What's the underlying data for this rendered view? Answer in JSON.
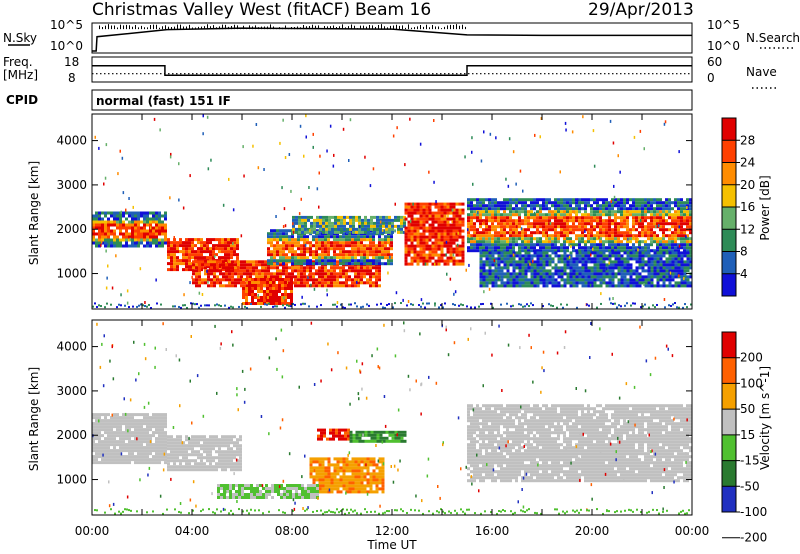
{
  "header": {
    "station": "Christmas Valley West (fitACF)",
    "beam": "Beam 16",
    "date": "29/Apr/2013"
  },
  "colors": {
    "power": [
      "#1010d8",
      "#1f5fb8",
      "#2e8b57",
      "#66b06a",
      "#f5c000",
      "#ff8c00",
      "#ff4000",
      "#e00000"
    ],
    "velocity": [
      "#2030c0",
      "#2a7a30",
      "#50c030",
      "#c0c0c0",
      "#f5a000",
      "#ff6000",
      "#e00000"
    ]
  },
  "chart_data": [
    {
      "type": "line",
      "panel": "noise",
      "left_label": "N.Sky",
      "right_label": "N.Search",
      "left_ticks": [
        "10^5",
        "10^0"
      ],
      "right_ticks": [
        "10^5",
        "10^0"
      ],
      "series": [
        {
          "x": [
            "00:00",
            "00:10",
            "00:12",
            "03:00",
            "06:00",
            "09:00",
            "12:00",
            "15:00",
            "18:00",
            "22:00",
            "24:00"
          ],
          "y_level": [
            0.0,
            0.0,
            0.55,
            0.82,
            0.88,
            0.86,
            0.84,
            0.62,
            0.6,
            0.6,
            0.6
          ]
        }
      ]
    },
    {
      "type": "line",
      "panel": "frequency",
      "left_label_lines": [
        "Freq.",
        "[MHz]"
      ],
      "right_label": "Nave",
      "left_ticks": [
        "18",
        "8"
      ],
      "right_ticks": [
        "60",
        "0"
      ],
      "series": [
        {
          "name": "Freq",
          "x": [
            "00:00",
            "02:55",
            "02:55",
            "15:00",
            "15:00",
            "24:00"
          ],
          "y": [
            14.5,
            14.5,
            10.7,
            10.7,
            14.5,
            14.5
          ]
        },
        {
          "name": "Nave",
          "x": [
            "00:00",
            "24:00"
          ],
          "y": [
            20,
            20
          ]
        }
      ]
    },
    {
      "type": "table",
      "panel": "cpid",
      "label": "CPID",
      "entries": [
        {
          "x": "00:00",
          "text": "normal (fast) 151 IF"
        }
      ]
    },
    {
      "type": "heatmap",
      "panel": "power",
      "ylabel": "Slant Range [km]",
      "yticks": [
        1000,
        2000,
        3000,
        4000
      ],
      "ylim": [
        200,
        4600
      ],
      "xlim": [
        "00:00",
        "24:00"
      ],
      "colorbar": {
        "label": "Power [dB]",
        "ticks": [
          4,
          8,
          12,
          16,
          20,
          24,
          28
        ]
      },
      "bands": [
        {
          "t0": 0.0,
          "t1": 2.9,
          "r0": 1600,
          "r1": 2400,
          "level": "mixed"
        },
        {
          "t0": 3.0,
          "t1": 5.8,
          "r0": 1100,
          "r1": 1800,
          "level": "strong"
        },
        {
          "t0": 4.0,
          "t1": 11.5,
          "r0": 700,
          "r1": 1300,
          "level": "strong"
        },
        {
          "t0": 6.0,
          "t1": 8.0,
          "r0": 300,
          "r1": 900,
          "level": "strong"
        },
        {
          "t0": 7.0,
          "t1": 12.0,
          "r0": 1200,
          "r1": 2000,
          "level": "mixed"
        },
        {
          "t0": 8.0,
          "t1": 12.5,
          "r0": 1900,
          "r1": 2300,
          "level": "medium"
        },
        {
          "t0": 12.5,
          "t1": 14.8,
          "r0": 1200,
          "r1": 2600,
          "level": "strong"
        },
        {
          "t0": 15.0,
          "t1": 24.0,
          "r0": 1500,
          "r1": 2700,
          "level": "mixed"
        },
        {
          "t0": 15.5,
          "t1": 24.0,
          "r0": 700,
          "r1": 1500,
          "level": "weak"
        }
      ]
    },
    {
      "type": "heatmap",
      "panel": "velocity",
      "ylabel": "Slant Range [km]",
      "yticks": [
        1000,
        2000,
        3000,
        4000
      ],
      "ylim": [
        200,
        4600
      ],
      "xlim": [
        "00:00",
        "24:00"
      ],
      "xticks": [
        "00:00",
        "04:00",
        "08:00",
        "12:00",
        "16:00",
        "20:00",
        "00:00"
      ],
      "xlabel": "Time UT",
      "colorbar": {
        "label": "Velocity [m s^-1]",
        "ticks": [
          200,
          100,
          50,
          15,
          -15,
          -50,
          -100,
          -200
        ]
      },
      "bands": [
        {
          "t0": 0.0,
          "t1": 2.9,
          "r0": 1400,
          "r1": 2500,
          "level": "ground"
        },
        {
          "t0": 3.0,
          "t1": 6.0,
          "r0": 1200,
          "r1": 2000,
          "level": "ground"
        },
        {
          "t0": 8.7,
          "t1": 11.6,
          "r0": 700,
          "r1": 1500,
          "level": "orange"
        },
        {
          "t0": 9.0,
          "t1": 10.3,
          "r0": 1900,
          "r1": 2150,
          "level": "red"
        },
        {
          "t0": 10.3,
          "t1": 12.5,
          "r0": 1850,
          "r1": 2100,
          "level": "green"
        },
        {
          "t0": 5.0,
          "t1": 9.0,
          "r0": 600,
          "r1": 900,
          "level": "lightgreen"
        },
        {
          "t0": 15.0,
          "t1": 24.0,
          "r0": 1000,
          "r1": 2700,
          "level": "ground"
        }
      ]
    }
  ]
}
